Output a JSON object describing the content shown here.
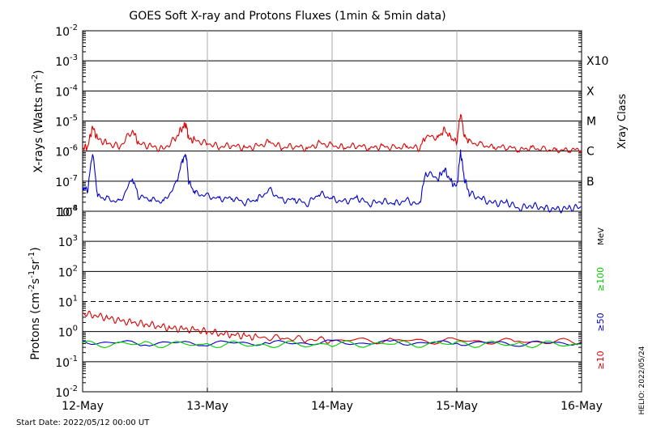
{
  "chart_data": [
    {
      "type": "line",
      "title": "GOES Soft X-ray and Protons Fluxes   (1min & 5min data)",
      "ylabel_main": "X-rays (Watts m",
      "ylabel_exp": "-2",
      "ylabel_close": ")",
      "y_scale": "log",
      "ylim_exp": [
        -8,
        -2
      ],
      "grid": true,
      "x_ticks": [
        "12-May",
        "13-May",
        "14-May",
        "15-May",
        "16-May"
      ],
      "xlim_days": [
        12,
        16
      ],
      "right_axis_title": "Xray Class",
      "class_labels": [
        {
          "label": "X10",
          "exp": -3
        },
        {
          "label": "X",
          "exp": -4
        },
        {
          "label": "M",
          "exp": -5
        },
        {
          "label": "C",
          "exp": -6
        },
        {
          "label": "B",
          "exp": -7
        }
      ],
      "series": [
        {
          "color": "#dd0000",
          "points": [
            [
              12.0,
              -5.9
            ],
            [
              12.04,
              -5.85
            ],
            [
              12.08,
              -5.2
            ],
            [
              12.12,
              -5.6
            ],
            [
              12.2,
              -5.75
            ],
            [
              12.3,
              -5.85
            ],
            [
              12.4,
              -5.3
            ],
            [
              12.45,
              -5.75
            ],
            [
              12.55,
              -5.85
            ],
            [
              12.65,
              -5.95
            ],
            [
              12.75,
              -5.55
            ],
            [
              12.8,
              -5.2
            ],
            [
              12.83,
              -5.1
            ],
            [
              12.85,
              -5.6
            ],
            [
              12.9,
              -5.65
            ],
            [
              13.0,
              -5.75
            ],
            [
              13.1,
              -5.85
            ],
            [
              13.2,
              -5.8
            ],
            [
              13.3,
              -5.9
            ],
            [
              13.4,
              -5.85
            ],
            [
              13.5,
              -5.7
            ],
            [
              13.6,
              -5.88
            ],
            [
              13.7,
              -5.82
            ],
            [
              13.8,
              -5.92
            ],
            [
              13.9,
              -5.75
            ],
            [
              14.0,
              -5.82
            ],
            [
              14.1,
              -5.88
            ],
            [
              14.2,
              -5.8
            ],
            [
              14.3,
              -5.9
            ],
            [
              14.4,
              -5.85
            ],
            [
              14.5,
              -5.9
            ],
            [
              14.6,
              -5.85
            ],
            [
              14.7,
              -5.9
            ],
            [
              14.75,
              -5.5
            ],
            [
              14.85,
              -5.55
            ],
            [
              14.9,
              -5.3
            ],
            [
              14.95,
              -5.55
            ],
            [
              15.0,
              -5.7
            ],
            [
              15.03,
              -4.7
            ],
            [
              15.06,
              -5.5
            ],
            [
              15.1,
              -5.7
            ],
            [
              15.2,
              -5.8
            ],
            [
              15.3,
              -5.88
            ],
            [
              15.4,
              -5.85
            ],
            [
              15.5,
              -5.95
            ],
            [
              15.6,
              -5.9
            ],
            [
              15.7,
              -5.95
            ],
            [
              15.8,
              -5.98
            ],
            [
              15.9,
              -5.95
            ],
            [
              16.0,
              -5.95
            ]
          ]
        },
        {
          "color": "#0000cc",
          "points": [
            [
              12.0,
              -7.2
            ],
            [
              12.04,
              -7.3
            ],
            [
              12.08,
              -6.0
            ],
            [
              12.12,
              -7.5
            ],
            [
              12.2,
              -7.6
            ],
            [
              12.3,
              -7.7
            ],
            [
              12.4,
              -6.9
            ],
            [
              12.45,
              -7.5
            ],
            [
              12.55,
              -7.6
            ],
            [
              12.65,
              -7.7
            ],
            [
              12.75,
              -7.1
            ],
            [
              12.8,
              -6.3
            ],
            [
              12.83,
              -6.1
            ],
            [
              12.85,
              -7.0
            ],
            [
              12.9,
              -7.4
            ],
            [
              13.0,
              -7.5
            ],
            [
              13.1,
              -7.6
            ],
            [
              13.2,
              -7.55
            ],
            [
              13.3,
              -7.7
            ],
            [
              13.4,
              -7.6
            ],
            [
              13.5,
              -7.3
            ],
            [
              13.6,
              -7.65
            ],
            [
              13.7,
              -7.6
            ],
            [
              13.8,
              -7.75
            ],
            [
              13.9,
              -7.4
            ],
            [
              14.0,
              -7.6
            ],
            [
              14.1,
              -7.7
            ],
            [
              14.2,
              -7.55
            ],
            [
              14.3,
              -7.75
            ],
            [
              14.4,
              -7.65
            ],
            [
              14.5,
              -7.75
            ],
            [
              14.6,
              -7.65
            ],
            [
              14.7,
              -7.8
            ],
            [
              14.75,
              -6.7
            ],
            [
              14.85,
              -6.9
            ],
            [
              14.9,
              -6.6
            ],
            [
              14.95,
              -7.0
            ],
            [
              15.0,
              -7.2
            ],
            [
              15.03,
              -6.0
            ],
            [
              15.06,
              -6.9
            ],
            [
              15.1,
              -7.4
            ],
            [
              15.2,
              -7.6
            ],
            [
              15.3,
              -7.75
            ],
            [
              15.4,
              -7.7
            ],
            [
              15.5,
              -7.9
            ],
            [
              15.6,
              -7.8
            ],
            [
              15.7,
              -7.9
            ],
            [
              15.8,
              -7.95
            ],
            [
              15.9,
              -7.9
            ],
            [
              16.0,
              -7.85
            ]
          ]
        }
      ]
    },
    {
      "type": "line",
      "ylabel_main": "Protons (cm",
      "ylabel_exp1": "-2",
      "ylabel_mid": "s",
      "ylabel_exp2": "-1",
      "ylabel_mid2": "sr",
      "ylabel_exp3": "-1",
      "ylabel_close": ")",
      "y_scale": "log",
      "ylim_exp": [
        -2,
        4
      ],
      "grid": true,
      "threshold_exp": 1,
      "right_axis_unit": "MeV",
      "series": [
        {
          "name": "≥10",
          "color": "#dd0000",
          "points": [
            [
              12.0,
              0.6
            ],
            [
              12.1,
              0.55
            ],
            [
              12.2,
              0.45
            ],
            [
              12.3,
              0.35
            ],
            [
              12.4,
              0.3
            ],
            [
              12.5,
              0.25
            ],
            [
              12.6,
              0.2
            ],
            [
              12.7,
              0.12
            ],
            [
              12.8,
              0.08
            ],
            [
              12.9,
              0.05
            ],
            [
              13.0,
              0.0
            ],
            [
              13.1,
              -0.05
            ],
            [
              13.2,
              -0.1
            ],
            [
              13.3,
              -0.15
            ],
            [
              13.4,
              -0.2
            ],
            [
              13.6,
              -0.22
            ],
            [
              13.8,
              -0.25
            ],
            [
              14.0,
              -0.28
            ],
            [
              14.5,
              -0.3
            ],
            [
              15.0,
              -0.32
            ],
            [
              15.5,
              -0.34
            ],
            [
              16.0,
              -0.33
            ]
          ]
        },
        {
          "name": "≥50",
          "color": "#0000cc",
          "points": [
            [
              12.0,
              -0.35
            ],
            [
              12.5,
              -0.38
            ],
            [
              13.0,
              -0.37
            ],
            [
              13.5,
              -0.38
            ],
            [
              14.0,
              -0.38
            ],
            [
              14.5,
              -0.38
            ],
            [
              15.0,
              -0.37
            ],
            [
              15.5,
              -0.38
            ],
            [
              16.0,
              -0.37
            ]
          ]
        },
        {
          "name": "≥100",
          "color": "#00cc00",
          "points": [
            [
              12.0,
              -0.42
            ],
            [
              12.5,
              -0.42
            ],
            [
              13.0,
              -0.42
            ],
            [
              13.5,
              -0.43
            ],
            [
              14.0,
              -0.42
            ],
            [
              14.5,
              -0.42
            ],
            [
              15.0,
              -0.41
            ],
            [
              15.5,
              -0.42
            ],
            [
              16.0,
              -0.42
            ]
          ]
        }
      ]
    }
  ],
  "footer": {
    "start_date": "Start Date: 2022/05/12 00:00 UT",
    "credit": "HELIO: 2022/05/24"
  }
}
